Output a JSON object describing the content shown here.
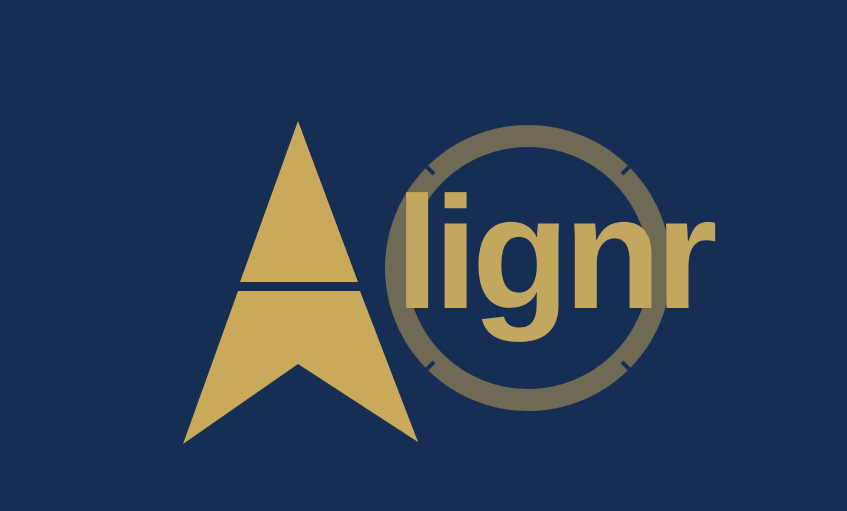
{
  "logo": {
    "wordmark": "lignr",
    "full_name": "Alignr",
    "colors": {
      "background": "#172e54",
      "gold": "#c9aa5a",
      "text_gold": "#c4a75e",
      "ring": "#6e6a54"
    }
  }
}
